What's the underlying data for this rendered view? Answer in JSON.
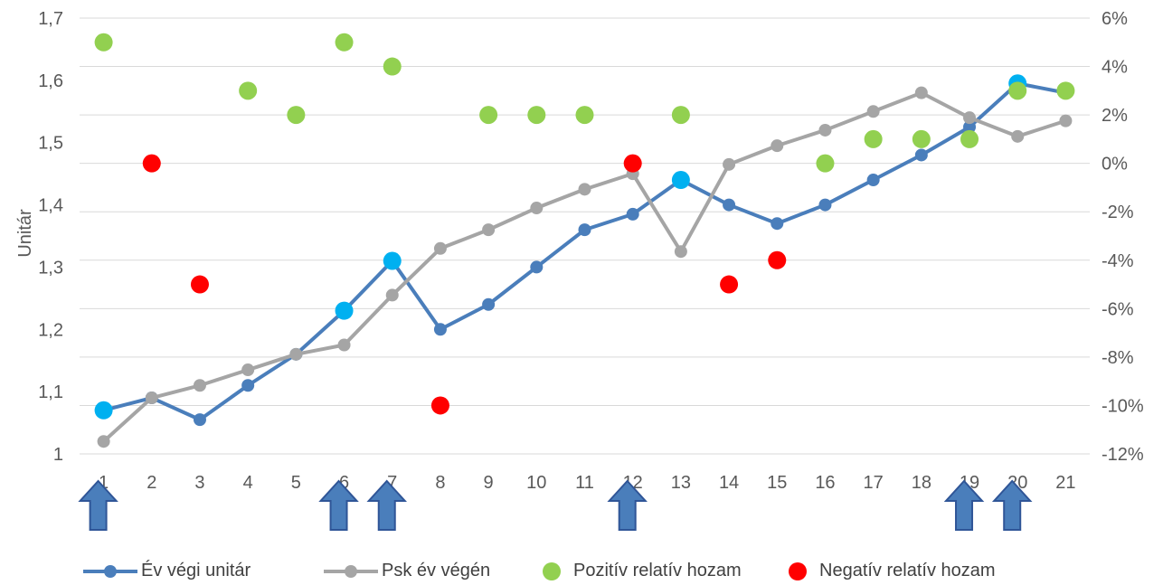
{
  "chart_data": {
    "type": "line",
    "ylabel": "Unitár",
    "categories": [
      "1",
      "2",
      "3",
      "4",
      "5",
      "6",
      "7",
      "8",
      "9",
      "10",
      "11",
      "12",
      "13",
      "14",
      "15",
      "16",
      "17",
      "18",
      "19",
      "20",
      "21"
    ],
    "y_left": {
      "min": 1,
      "max": 1.7,
      "ticks": [
        "1",
        "1,1",
        "1,2",
        "1,3",
        "1,4",
        "1,5",
        "1,6",
        "1,7"
      ]
    },
    "y_right": {
      "min": -12,
      "max": 6,
      "unit": "%",
      "ticks": [
        "-12%",
        "-10%",
        "-8%",
        "-6%",
        "-4%",
        "-2%",
        "0%",
        "2%",
        "4%",
        "6%"
      ]
    },
    "grid": true,
    "legend_position": "bottom",
    "series": [
      {
        "name": "Év végi unitár",
        "axis": "left",
        "color": "#4a7ebb",
        "values": [
          1.07,
          1.09,
          1.055,
          1.11,
          1.16,
          1.23,
          1.31,
          1.2,
          1.24,
          1.3,
          1.36,
          1.385,
          1.44,
          1.4,
          1.37,
          1.4,
          1.44,
          1.48,
          1.525,
          1.595,
          1.58
        ]
      },
      {
        "name": "Psk év végén",
        "axis": "left",
        "color": "#a5a5a5",
        "values": [
          1.02,
          1.09,
          1.11,
          1.135,
          1.16,
          1.175,
          1.255,
          1.33,
          1.36,
          1.395,
          1.425,
          1.45,
          1.325,
          1.465,
          1.495,
          1.52,
          1.55,
          1.58,
          1.54,
          1.51,
          1.535
        ]
      },
      {
        "name": "Pozitív relatív hozam",
        "axis": "right",
        "type": "scatter",
        "color": "#92d050",
        "points": [
          [
            1,
            5
          ],
          [
            4,
            3
          ],
          [
            5,
            2
          ],
          [
            6,
            5
          ],
          [
            7,
            4
          ],
          [
            9,
            2
          ],
          [
            10,
            2
          ],
          [
            11,
            2
          ],
          [
            13,
            2
          ],
          [
            16,
            0
          ],
          [
            17,
            1
          ],
          [
            18,
            1
          ],
          [
            19,
            1
          ],
          [
            20,
            3
          ],
          [
            21,
            3
          ]
        ]
      },
      {
        "name": "Negatív relatív hozam",
        "axis": "right",
        "type": "scatter",
        "color": "#ff0000",
        "points": [
          [
            2,
            0
          ],
          [
            3,
            -5
          ],
          [
            8,
            -10
          ],
          [
            12,
            0
          ],
          [
            14,
            -5
          ],
          [
            15,
            -4
          ]
        ]
      }
    ],
    "highlighted_points": {
      "color": "#00b0f0",
      "categories": [
        1,
        6,
        7,
        13,
        20
      ]
    },
    "arrows": {
      "color": "#4a7ebb",
      "categories": [
        1,
        6,
        7,
        12,
        19,
        20
      ]
    }
  },
  "legend": {
    "items": [
      {
        "label": "Év végi unitár",
        "style": "line",
        "color": "#4a7ebb"
      },
      {
        "label": "Psk év végén",
        "style": "line",
        "color": "#a5a5a5"
      },
      {
        "label": "Pozitív relatív hozam",
        "style": "dot",
        "color": "#92d050"
      },
      {
        "label": "Negatív relatív hozam",
        "style": "dot",
        "color": "#ff0000"
      }
    ]
  }
}
